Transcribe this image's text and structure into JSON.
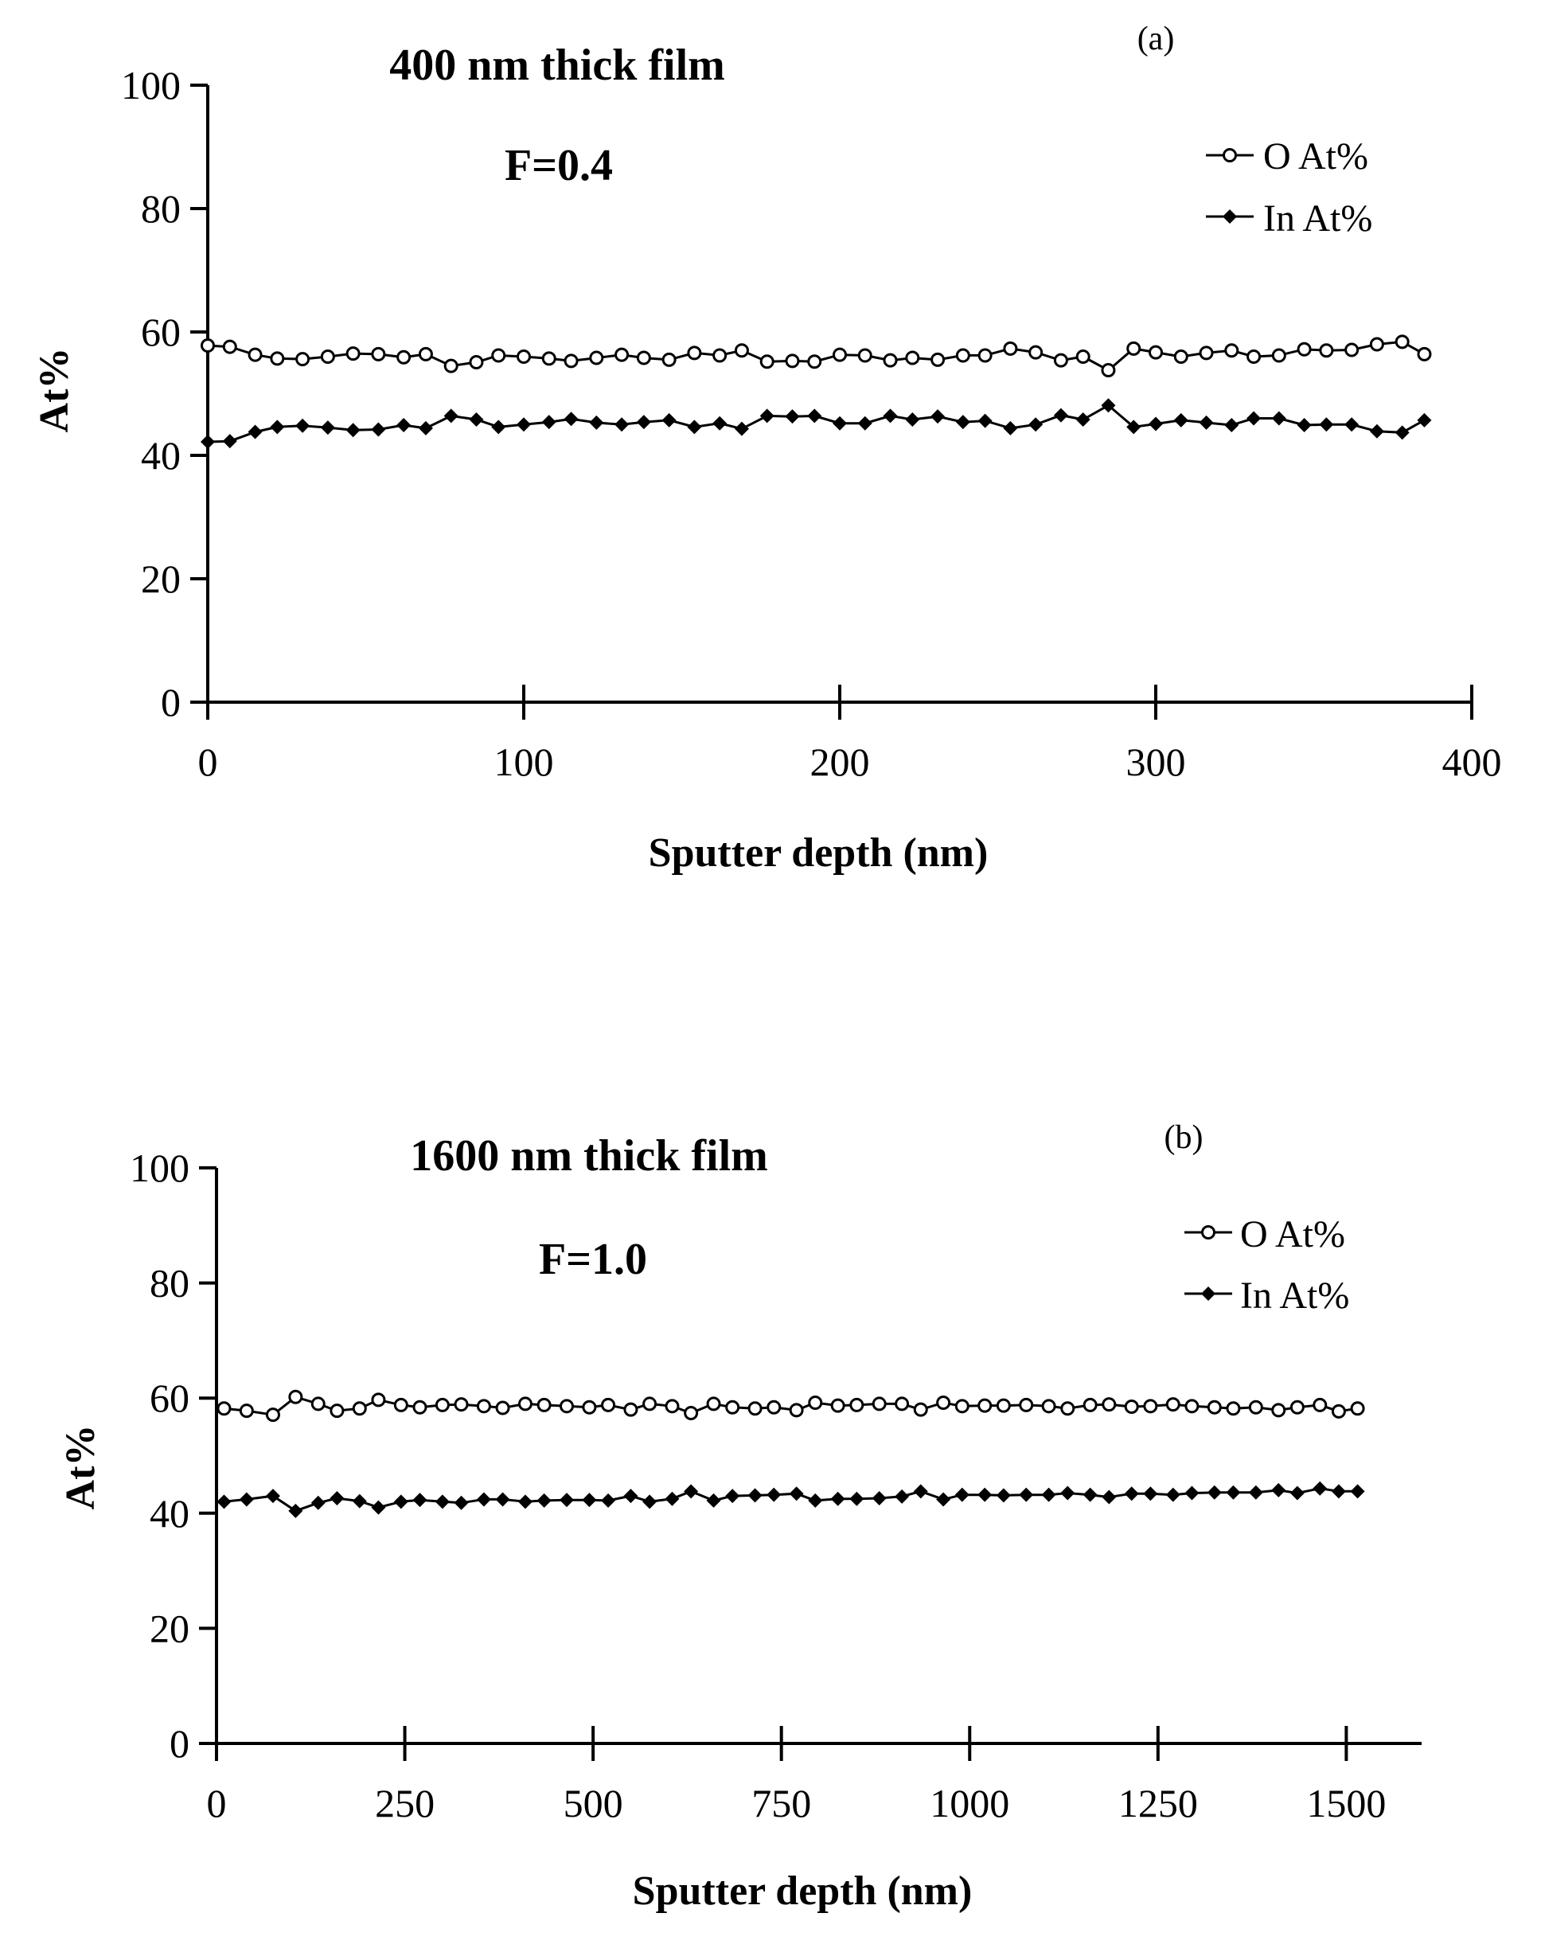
{
  "chart_data": [
    {
      "type": "line",
      "panel_label": "(a)",
      "title": "400 nm thick film",
      "annotation": "F=0.4",
      "xlabel": "Sputter depth (nm)",
      "ylabel": "At%",
      "xlim": [
        0,
        400
      ],
      "ylim": [
        0,
        100
      ],
      "xticks": [
        0,
        100,
        200,
        300,
        400
      ],
      "yticks": [
        0,
        20,
        40,
        60,
        80,
        100
      ],
      "legend_position": "top-right",
      "grid": false,
      "series": [
        {
          "name": "O At%",
          "marker": "open-circle",
          "color": "#000000",
          "x": [
            0,
            7,
            15,
            22,
            30,
            38,
            46,
            54,
            62,
            69,
            77,
            85,
            92,
            100,
            108,
            115,
            123,
            131,
            138,
            146,
            154,
            162,
            169,
            177,
            185,
            192,
            200,
            208,
            216,
            223,
            231,
            239,
            246,
            254,
            262,
            270,
            277,
            285,
            293,
            300,
            308,
            316,
            324,
            331,
            339,
            347,
            354,
            362,
            370,
            378,
            385
          ],
          "values": [
            57.8,
            57.6,
            56.3,
            55.7,
            55.6,
            56.0,
            56.5,
            56.4,
            55.9,
            56.4,
            54.5,
            55.1,
            56.2,
            56.0,
            55.7,
            55.3,
            55.8,
            56.3,
            55.8,
            55.5,
            56.6,
            56.2,
            57.0,
            55.2,
            55.3,
            55.2,
            56.3,
            56.2,
            55.4,
            55.8,
            55.5,
            56.2,
            56.2,
            57.3,
            56.7,
            55.4,
            56.0,
            53.8,
            57.3,
            56.7,
            56.0,
            56.6,
            57.0,
            56.0,
            56.2,
            57.2,
            57.0,
            57.1,
            58.0,
            58.4,
            56.4
          ]
        },
        {
          "name": "In At%",
          "marker": "filled-diamond",
          "color": "#000000",
          "x": [
            0,
            7,
            15,
            22,
            30,
            38,
            46,
            54,
            62,
            69,
            77,
            85,
            92,
            100,
            108,
            115,
            123,
            131,
            138,
            146,
            154,
            162,
            169,
            177,
            185,
            192,
            200,
            208,
            216,
            223,
            231,
            239,
            246,
            254,
            262,
            270,
            277,
            285,
            293,
            300,
            308,
            316,
            324,
            331,
            339,
            347,
            354,
            362,
            370,
            378,
            385
          ],
          "values": [
            42.2,
            42.3,
            43.8,
            44.6,
            44.8,
            44.5,
            44.1,
            44.2,
            44.9,
            44.4,
            46.4,
            45.8,
            44.6,
            45.0,
            45.4,
            45.9,
            45.3,
            45.0,
            45.4,
            45.7,
            44.6,
            45.2,
            44.3,
            46.4,
            46.3,
            46.4,
            45.2,
            45.2,
            46.4,
            45.8,
            46.3,
            45.4,
            45.6,
            44.4,
            45.0,
            46.5,
            45.8,
            48.1,
            44.6,
            45.1,
            45.7,
            45.3,
            44.9,
            46.0,
            46.0,
            44.9,
            45.0,
            45.0,
            43.9,
            43.7,
            45.7
          ]
        }
      ]
    },
    {
      "type": "line",
      "panel_label": "(b)",
      "title": "1600 nm thick film",
      "annotation": "F=1.0",
      "xlabel": "Sputter depth (nm)",
      "ylabel": "At%",
      "xlim": [
        0,
        1600
      ],
      "ylim": [
        0,
        100
      ],
      "xticks": [
        0,
        250,
        500,
        750,
        1000,
        1250,
        1500
      ],
      "yticks": [
        0,
        20,
        40,
        60,
        80,
        100
      ],
      "legend_position": "top-right",
      "grid": false,
      "series": [
        {
          "name": "O At%",
          "marker": "open-circle",
          "color": "#000000",
          "x": [
            10,
            40,
            75,
            105,
            135,
            160,
            190,
            215,
            245,
            270,
            300,
            325,
            355,
            380,
            410,
            435,
            465,
            495,
            520,
            550,
            575,
            605,
            630,
            660,
            685,
            715,
            740,
            770,
            795,
            825,
            850,
            880,
            910,
            935,
            965,
            990,
            1020,
            1045,
            1075,
            1105,
            1130,
            1160,
            1185,
            1215,
            1240,
            1270,
            1295,
            1325,
            1350,
            1380,
            1410,
            1435,
            1465,
            1490,
            1515
          ],
          "values": [
            58.2,
            57.8,
            57.1,
            60.2,
            59.0,
            57.8,
            58.2,
            59.7,
            58.8,
            58.4,
            58.8,
            58.9,
            58.6,
            58.3,
            59.0,
            58.8,
            58.6,
            58.4,
            58.8,
            58.0,
            59.0,
            58.6,
            57.4,
            59.0,
            58.4,
            58.2,
            58.4,
            57.9,
            59.2,
            58.7,
            58.8,
            59.0,
            59.0,
            58.0,
            59.2,
            58.6,
            58.7,
            58.7,
            58.8,
            58.6,
            58.2,
            58.8,
            58.9,
            58.5,
            58.6,
            58.9,
            58.6,
            58.4,
            58.2,
            58.4,
            57.9,
            58.4,
            58.8,
            57.7,
            58.2
          ]
        },
        {
          "name": "In At%",
          "marker": "filled-diamond",
          "color": "#000000",
          "x": [
            10,
            40,
            75,
            105,
            135,
            160,
            190,
            215,
            245,
            270,
            300,
            325,
            355,
            380,
            410,
            435,
            465,
            495,
            520,
            550,
            575,
            605,
            630,
            660,
            685,
            715,
            740,
            770,
            795,
            825,
            850,
            880,
            910,
            935,
            965,
            990,
            1020,
            1045,
            1075,
            1105,
            1130,
            1160,
            1185,
            1215,
            1240,
            1270,
            1295,
            1325,
            1350,
            1380,
            1410,
            1435,
            1465,
            1490,
            1515
          ],
          "values": [
            42.0,
            42.4,
            43.0,
            40.4,
            41.8,
            42.6,
            42.1,
            41.0,
            42.0,
            42.3,
            42.0,
            41.8,
            42.4,
            42.4,
            42.0,
            42.2,
            42.3,
            42.3,
            42.2,
            43.0,
            42.0,
            42.5,
            43.8,
            42.2,
            43.0,
            43.1,
            43.2,
            43.4,
            42.2,
            42.5,
            42.5,
            42.6,
            42.9,
            43.8,
            42.4,
            43.2,
            43.2,
            43.1,
            43.2,
            43.2,
            43.5,
            43.2,
            42.8,
            43.4,
            43.4,
            43.2,
            43.5,
            43.6,
            43.6,
            43.6,
            44.0,
            43.5,
            44.3,
            43.8,
            43.8
          ]
        }
      ]
    }
  ]
}
